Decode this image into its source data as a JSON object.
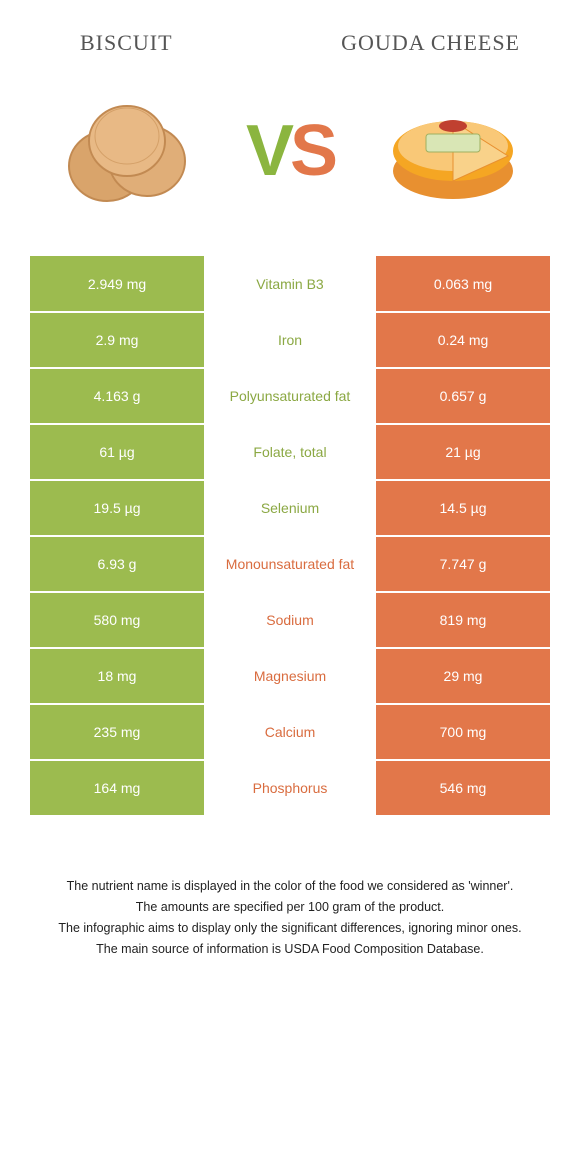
{
  "header": {
    "left_title": "Biscuit",
    "right_title": "Gouda cheese",
    "vs_v": "V",
    "vs_s": "S"
  },
  "colors": {
    "green": "#9cbb4f",
    "orange": "#e2774a",
    "text_green": "#8ba843",
    "text_orange": "#d96c3f",
    "biscuit_fill": "#d9a46b",
    "biscuit_stroke": "#c28a52",
    "gouda_fill": "#f5a623",
    "gouda_top": "#f9d28a",
    "gouda_label": "#d9e6b5"
  },
  "rows": [
    {
      "left": "2.949 mg",
      "label": "Vitamin B3",
      "right": "0.063 mg",
      "winner": "left"
    },
    {
      "left": "2.9 mg",
      "label": "Iron",
      "right": "0.24 mg",
      "winner": "left"
    },
    {
      "left": "4.163 g",
      "label": "Polyunsaturated fat",
      "right": "0.657 g",
      "winner": "left"
    },
    {
      "left": "61 µg",
      "label": "Folate, total",
      "right": "21 µg",
      "winner": "left"
    },
    {
      "left": "19.5 µg",
      "label": "Selenium",
      "right": "14.5 µg",
      "winner": "left"
    },
    {
      "left": "6.93 g",
      "label": "Monounsaturated fat",
      "right": "7.747 g",
      "winner": "right"
    },
    {
      "left": "580 mg",
      "label": "Sodium",
      "right": "819 mg",
      "winner": "right"
    },
    {
      "left": "18 mg",
      "label": "Magnesium",
      "right": "29 mg",
      "winner": "right"
    },
    {
      "left": "235 mg",
      "label": "Calcium",
      "right": "700 mg",
      "winner": "right"
    },
    {
      "left": "164 mg",
      "label": "Phosphorus",
      "right": "546 mg",
      "winner": "right"
    }
  ],
  "footer": {
    "line1": "The nutrient name is displayed in the color of the food we considered as 'winner'.",
    "line2": "The amounts are specified per 100 gram of the product.",
    "line3": "The infographic aims to display only the significant differences, ignoring minor ones.",
    "line4": "The main source of information is USDA Food Composition Database."
  }
}
